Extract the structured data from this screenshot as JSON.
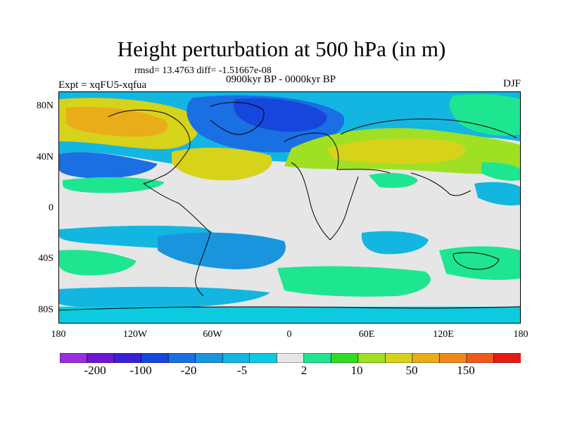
{
  "title": "Height perturbation at 500 hPa (in m)",
  "stats_line": "rmsd= 13.4763 diff= -1.51667e-08",
  "period": "0900kyr BP - 0000kyr BP",
  "experiment": "Expt = xqFU5-xqfua",
  "season": "DJF",
  "lat_ticks": [
    "80N",
    "40N",
    "0",
    "40S",
    "80S"
  ],
  "lon_ticks": [
    "180",
    "120W",
    "60W",
    "0",
    "60E",
    "120E",
    "180"
  ],
  "colorbar": {
    "colors": [
      "#9b2de0",
      "#6f15d4",
      "#3c20d8",
      "#1646dc",
      "#1a6fe2",
      "#1995de",
      "#13b6e0",
      "#0ccbe0",
      "#e6e6e6",
      "#1ee690",
      "#2fdc20",
      "#9fe024",
      "#d7d21a",
      "#e8ad18",
      "#ef8a1a",
      "#ef5a1c",
      "#e61a14"
    ],
    "labels": [
      "-200",
      "-100",
      "-20",
      "-5",
      "2",
      "10",
      "50",
      "150"
    ]
  },
  "map_colors": {
    "neutral": "#e6e6e6",
    "light_blue": "#0ccbe0",
    "cyan": "#13b6e0",
    "mid_blue": "#1995de",
    "blue": "#1a6fe2",
    "deep_blue": "#1646dc",
    "green": "#1ee690",
    "lime": "#9fe024",
    "yellow": "#d7d21a",
    "orange": "#e8ad18",
    "coast": "#000000"
  }
}
